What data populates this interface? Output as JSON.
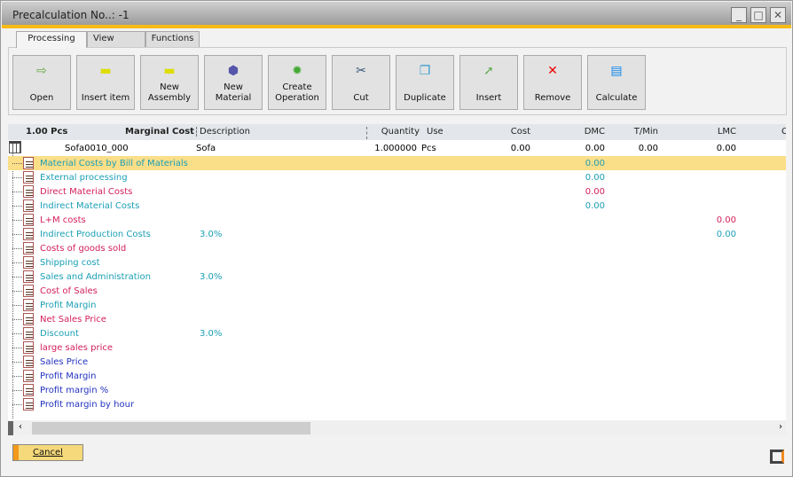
{
  "window": {
    "title": "Precalculation No..: -1",
    "controls": [
      "minimize",
      "maximize",
      "close"
    ]
  },
  "tabs": [
    {
      "label": "Processing",
      "active": true
    },
    {
      "label": "View"
    },
    {
      "label": "Functions"
    }
  ],
  "toolbar": [
    {
      "label": "Open",
      "icon": "open-icon"
    },
    {
      "label": "Insert item",
      "icon": "folder-icon"
    },
    {
      "label": "New Assembly",
      "icon": "folder-icon"
    },
    {
      "label": "New Material",
      "icon": "cube-icon"
    },
    {
      "label": "Create Operation",
      "icon": "gear-icon"
    },
    {
      "label": "Cut",
      "icon": "scissors-icon"
    },
    {
      "label": "Duplicate",
      "icon": "duplicate-icon"
    },
    {
      "label": "Insert",
      "icon": "insert-icon"
    },
    {
      "label": "Remove",
      "icon": "remove-icon"
    },
    {
      "label": "Calculate",
      "icon": "calculate-icon"
    }
  ],
  "grid": {
    "headers": {
      "qty": "1.00 Pcs",
      "marginal": "Marginal Cost",
      "description": "Description",
      "quantity": "Quantity",
      "use": "Use",
      "cost": "Cost",
      "dmc": "DMC",
      "tmin": "T/Min",
      "lmc": "LMC",
      "c": "C"
    },
    "root": {
      "item": "Sofa0010_000",
      "description": "Sofa",
      "quantity": "1.000000",
      "use": "Pcs",
      "cost": "0.00",
      "dmc": "0.00",
      "tmin": "0.00",
      "lmc": "0.00"
    },
    "rows": [
      {
        "name": "Material Costs by Bill of Materials",
        "color": "teal",
        "dmc": "0.00",
        "selected": true
      },
      {
        "name": "External processing",
        "color": "teal",
        "dmc": "0.00"
      },
      {
        "name": "Direct Material Costs",
        "color": "red",
        "dmc": "0.00"
      },
      {
        "name": "Indirect Material Costs",
        "color": "teal",
        "dmc": "0.00"
      },
      {
        "name": "L+M costs",
        "color": "red",
        "lmc": "0.00"
      },
      {
        "name": "Indirect Production Costs",
        "color": "teal",
        "pct": "3.0%",
        "lmc": "0.00"
      },
      {
        "name": "Costs of goods sold",
        "color": "red"
      },
      {
        "name": "Shipping cost",
        "color": "teal"
      },
      {
        "name": "Sales and Administration",
        "color": "teal",
        "pct": "3.0%"
      },
      {
        "name": "Cost of Sales",
        "color": "red"
      },
      {
        "name": "Profit Margin",
        "color": "teal"
      },
      {
        "name": "Net Sales Price",
        "color": "red"
      },
      {
        "name": "Discount",
        "color": "teal",
        "pct": "3.0%"
      },
      {
        "name": "large sales price",
        "color": "red"
      },
      {
        "name": "Sales Price",
        "color": "blue"
      },
      {
        "name": "Profit Margin",
        "color": "blue"
      },
      {
        "name": "Profit margin %",
        "color": "blue"
      },
      {
        "name": "Profit margin by hour",
        "color": "blue"
      }
    ]
  },
  "footer": {
    "cancel": "Cancel"
  },
  "colors": {
    "accent": "#f8bb16",
    "teal": "#1a9fb5",
    "red": "#d4205a",
    "blue": "#2232c0",
    "selected": "#fbde88"
  }
}
